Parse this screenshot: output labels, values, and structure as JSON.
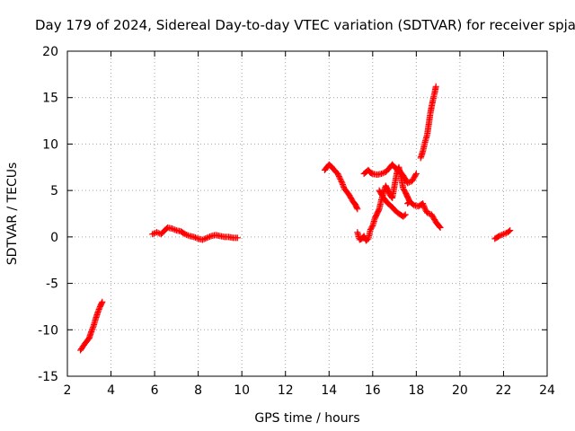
{
  "chart_data": {
    "type": "scatter",
    "title": "Day 179 of 2024, Sidereal Day-to-day VTEC variation (SDTVAR) for receiver spja",
    "xlabel": "GPS time / hours",
    "ylabel": "SDTVAR / TECUs",
    "xlim": [
      2,
      24
    ],
    "ylim": [
      -15,
      20
    ],
    "xticks": [
      2,
      4,
      6,
      8,
      10,
      12,
      14,
      16,
      18,
      20,
      22,
      24
    ],
    "yticks": [
      -15,
      -10,
      -5,
      0,
      5,
      10,
      15,
      20
    ],
    "grid": true,
    "marker": "plus",
    "marker_color": "#ff0000",
    "series": [
      {
        "name": "spja",
        "segments": [
          {
            "x": [
              2.6,
              2.8,
              3.0,
              3.1,
              3.2,
              3.3,
              3.4,
              3.5,
              3.6
            ],
            "y": [
              -12.2,
              -11.5,
              -10.9,
              -10.2,
              -9.6,
              -8.8,
              -8.1,
              -7.5,
              -7.0
            ]
          },
          {
            "x": [
              5.9,
              6.1,
              6.3,
              6.5,
              6.6,
              6.8,
              7.0,
              7.2,
              7.4,
              7.6,
              7.8,
              8.0,
              8.2,
              8.4,
              8.6,
              8.8,
              9.0,
              9.2,
              9.4,
              9.6,
              9.8
            ],
            "y": [
              0.3,
              0.5,
              0.3,
              0.8,
              1.0,
              0.9,
              0.7,
              0.6,
              0.3,
              0.1,
              0.0,
              -0.2,
              -0.3,
              -0.1,
              0.1,
              0.2,
              0.1,
              0.0,
              0.0,
              -0.1,
              -0.1
            ]
          },
          {
            "x": [
              13.8,
              14.0,
              14.1,
              14.2,
              14.4,
              14.6,
              14.7,
              14.9,
              15.0,
              15.1,
              15.2,
              15.3
            ],
            "y": [
              7.2,
              7.8,
              7.6,
              7.3,
              6.8,
              5.8,
              5.2,
              4.6,
              4.2,
              3.8,
              3.5,
              3.0
            ]
          },
          {
            "x": [
              15.3,
              15.4,
              15.5,
              15.6,
              15.7,
              15.8,
              15.9,
              16.0,
              16.1,
              16.2,
              16.3,
              16.4,
              16.5,
              16.6,
              16.7,
              16.8,
              16.9,
              17.0,
              17.1,
              17.2,
              17.3,
              17.4,
              17.5,
              17.6,
              17.7
            ],
            "y": [
              0.5,
              -0.3,
              -0.2,
              0.1,
              -0.4,
              -0.2,
              0.8,
              1.2,
              2.0,
              2.5,
              3.0,
              4.0,
              4.8,
              5.5,
              5.0,
              4.5,
              4.2,
              5.5,
              6.8,
              7.5,
              6.5,
              5.2,
              4.8,
              4.3,
              3.8
            ]
          },
          {
            "x": [
              15.6,
              15.7,
              15.8,
              15.9,
              16.0,
              16.2,
              16.4,
              16.6,
              16.8,
              16.9,
              17.0,
              17.2,
              17.4,
              17.6,
              17.8,
              18.0
            ],
            "y": [
              6.8,
              7.0,
              7.2,
              6.9,
              6.8,
              6.7,
              6.8,
              7.0,
              7.5,
              7.8,
              7.5,
              7.2,
              6.6,
              5.8,
              6.0,
              6.8
            ]
          },
          {
            "x": [
              16.3,
              16.5,
              16.7,
              16.9,
              17.0,
              17.2,
              17.4,
              17.5
            ],
            "y": [
              5.0,
              4.2,
              3.6,
              3.2,
              2.9,
              2.5,
              2.2,
              2.4
            ]
          },
          {
            "x": [
              17.6,
              17.7,
              17.9,
              18.1,
              18.3,
              18.4,
              18.5,
              18.7,
              18.8,
              18.9,
              19.0,
              19.1
            ],
            "y": [
              3.6,
              3.8,
              3.4,
              3.3,
              3.6,
              3.0,
              2.6,
              2.4,
              2.0,
              1.6,
              1.3,
              1.0
            ]
          },
          {
            "x": [
              18.2,
              18.3,
              18.4,
              18.5,
              18.55,
              18.6,
              18.65,
              18.7,
              18.75,
              18.8,
              18.85,
              18.9
            ],
            "y": [
              8.5,
              9.2,
              10.2,
              11.0,
              11.8,
              12.6,
              13.4,
              14.0,
              14.6,
              15.1,
              15.6,
              16.2
            ]
          },
          {
            "x": [
              21.6,
              21.8,
              22.0,
              22.2,
              22.3
            ],
            "y": [
              -0.2,
              0.1,
              0.3,
              0.5,
              0.7
            ]
          }
        ]
      }
    ]
  }
}
